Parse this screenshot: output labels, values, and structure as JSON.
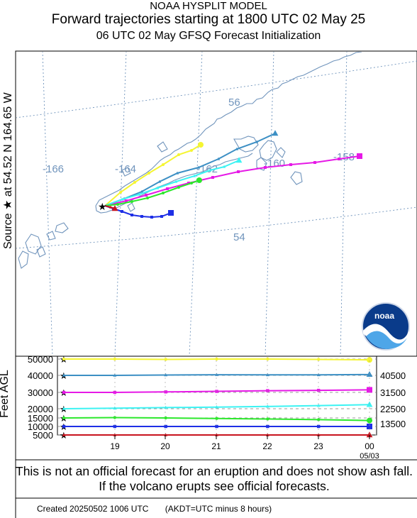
{
  "header": {
    "title_line1": "NOAA HYSPLIT MODEL",
    "title_line2": "Forward trajectories starting at 1800 UTC 02 May 25",
    "title_line3": "06 UTC 02 May     GFSQ  Forecast Initialization"
  },
  "side_label": "Source ★  at   54.52 N  164.65 W",
  "vertical_axis_label": "Feet AGL",
  "logo_text": "noaa",
  "map": {
    "longitude_labels": [
      "-166",
      "-164",
      "-162",
      "-160",
      "-158"
    ],
    "latitude_labels": [
      "56",
      "54"
    ]
  },
  "chart_data": {
    "type": "line",
    "title": "Forward trajectories starting at 1800 UTC 02 May 25",
    "ylabel": "Feet AGL",
    "y_ticks": [
      "50000",
      "40000",
      "30000",
      "20000",
      "15000",
      "10000",
      "5000"
    ],
    "x_ticks": [
      "19",
      "20",
      "21",
      "22",
      "23",
      "00"
    ],
    "x_sub_label": "05/03",
    "right_labels": [
      "40500",
      "31500",
      "22500",
      "13500"
    ],
    "x_range_hours": [
      0,
      30
    ],
    "colors": {
      "50000": "#f5f532",
      "40000": "#3c8fc4",
      "30000": "#e619e6",
      "20000": "#3cf3f3",
      "15000": "#2ce82c",
      "10000": "#1e2fe6",
      "5000": "#c8141e"
    },
    "series": [
      {
        "name": "50000",
        "color": "#f5f532",
        "marker": "circle",
        "heights_ft": [
          50000,
          50000,
          49800,
          50000,
          50000,
          49800,
          49500
        ]
      },
      {
        "name": "40000",
        "color": "#3c8fc4",
        "marker": "triangle",
        "heights_ft": [
          40000,
          40000,
          40200,
          40400,
          40300,
          40300,
          40500
        ]
      },
      {
        "name": "30000",
        "color": "#e619e6",
        "marker": "square",
        "heights_ft": [
          30000,
          30000,
          30300,
          30600,
          31000,
          31200,
          31500
        ]
      },
      {
        "name": "20000",
        "color": "#3cf3f3",
        "marker": "triangle",
        "heights_ft": [
          20000,
          20300,
          20700,
          21000,
          21400,
          21900,
          22500
        ]
      },
      {
        "name": "15000",
        "color": "#2ce82c",
        "marker": "circle",
        "heights_ft": [
          15000,
          15200,
          15000,
          14700,
          14400,
          14000,
          13500
        ]
      },
      {
        "name": "10000",
        "color": "#1e2fe6",
        "marker": "square",
        "heights_ft": [
          10000,
          10000,
          10000,
          10000,
          10000,
          10000,
          10000
        ]
      },
      {
        "name": "5000",
        "color": "#c8141e",
        "marker": "triangle",
        "heights_ft": [
          5000,
          5000,
          5000,
          5000,
          5000,
          5000,
          5000
        ]
      }
    ]
  },
  "disclaimer": "This is not an official forecast for an eruption and does not show ash fall. If the volcano erupts see official forecasts.",
  "footer": "Created 20250502 1006 UTC       (AKDT=UTC minus 8 hours)"
}
